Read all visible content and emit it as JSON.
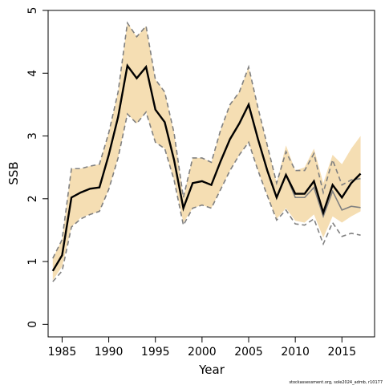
{
  "chart_data": {
    "type": "line",
    "title": "",
    "xlabel": "Year",
    "ylabel": "SSB",
    "xlim": [
      1983.5,
      2018.5
    ],
    "ylim": [
      -0.2,
      5.0
    ],
    "x_ticks": [
      1985,
      1990,
      1995,
      2000,
      2005,
      2010,
      2015
    ],
    "y_ticks": [
      0,
      1,
      2,
      3,
      4,
      5
    ],
    "grid": false,
    "legend": "none",
    "colors": {
      "ci_band": "#f5deb3",
      "main_line": "#000000",
      "retro_line": "#808080",
      "dashed_line": "#808080"
    },
    "x": [
      1984,
      1985,
      1986,
      1987,
      1988,
      1989,
      1990,
      1991,
      1992,
      1993,
      1994,
      1995,
      1996,
      1997,
      1998,
      1999,
      2000,
      2001,
      2002,
      2003,
      2004,
      2005,
      2006,
      2007,
      2008,
      2009,
      2010,
      2011,
      2012,
      2013,
      2014,
      2015,
      2016,
      2017
    ],
    "series": [
      {
        "role": "ci_upper",
        "values": [
          1.05,
          1.35,
          2.48,
          2.48,
          2.52,
          2.55,
          3.05,
          3.7,
          4.8,
          4.58,
          4.75,
          3.9,
          3.7,
          3.05,
          2.02,
          2.65,
          2.65,
          2.58,
          3.1,
          3.5,
          3.7,
          4.1,
          3.45,
          2.85,
          2.25,
          2.85,
          2.45,
          2.5,
          2.8,
          2.25,
          2.7,
          2.55,
          2.8,
          3.0
        ]
      },
      {
        "role": "ci_lower",
        "values": [
          0.7,
          0.92,
          1.55,
          1.7,
          1.75,
          1.8,
          2.15,
          2.65,
          3.35,
          3.2,
          3.38,
          2.9,
          2.8,
          2.3,
          1.62,
          1.85,
          1.9,
          1.85,
          2.15,
          2.45,
          2.7,
          2.9,
          2.45,
          2.05,
          1.68,
          1.85,
          1.65,
          1.62,
          1.75,
          1.38,
          1.72,
          1.62,
          1.72,
          1.8
        ]
      },
      {
        "role": "estimate",
        "values": [
          0.85,
          1.1,
          2.02,
          2.1,
          2.16,
          2.18,
          2.7,
          3.3,
          4.12,
          3.92,
          4.1,
          3.42,
          3.22,
          2.62,
          1.85,
          2.25,
          2.28,
          2.22,
          2.6,
          2.95,
          3.2,
          3.5,
          2.95,
          2.45,
          2.02,
          2.38,
          2.08,
          2.08,
          2.28,
          1.78,
          2.22,
          2.02,
          2.25,
          2.4
        ]
      },
      {
        "role": "retro_estimate",
        "values": [
          0.85,
          1.1,
          2.02,
          2.1,
          2.16,
          2.18,
          2.7,
          3.3,
          4.12,
          3.92,
          4.1,
          3.42,
          3.22,
          2.62,
          1.85,
          2.25,
          2.28,
          2.22,
          2.6,
          2.95,
          3.2,
          3.5,
          2.95,
          2.45,
          2.02,
          2.38,
          2.02,
          2.02,
          2.18,
          1.72,
          2.12,
          1.82,
          1.88,
          1.86
        ]
      },
      {
        "role": "retro_upper",
        "values": [
          1.05,
          1.35,
          2.48,
          2.48,
          2.52,
          2.55,
          3.05,
          3.7,
          4.8,
          4.58,
          4.75,
          3.9,
          3.7,
          3.05,
          2.02,
          2.65,
          2.65,
          2.58,
          3.1,
          3.5,
          3.7,
          4.1,
          3.45,
          2.85,
          2.25,
          2.75,
          2.45,
          2.45,
          2.72,
          2.1,
          2.62,
          2.22,
          2.3,
          2.32
        ]
      },
      {
        "role": "retro_lower",
        "values": [
          0.68,
          0.85,
          1.55,
          1.68,
          1.75,
          1.8,
          2.15,
          2.65,
          3.35,
          3.2,
          3.38,
          2.9,
          2.8,
          2.3,
          1.58,
          1.85,
          1.9,
          1.85,
          2.15,
          2.45,
          2.7,
          2.9,
          2.45,
          2.05,
          1.66,
          1.82,
          1.6,
          1.58,
          1.68,
          1.28,
          1.62,
          1.4,
          1.45,
          1.42
        ]
      }
    ]
  },
  "footer": {
    "text": "stockassessment.org, sole2024_admb, r10177"
  }
}
